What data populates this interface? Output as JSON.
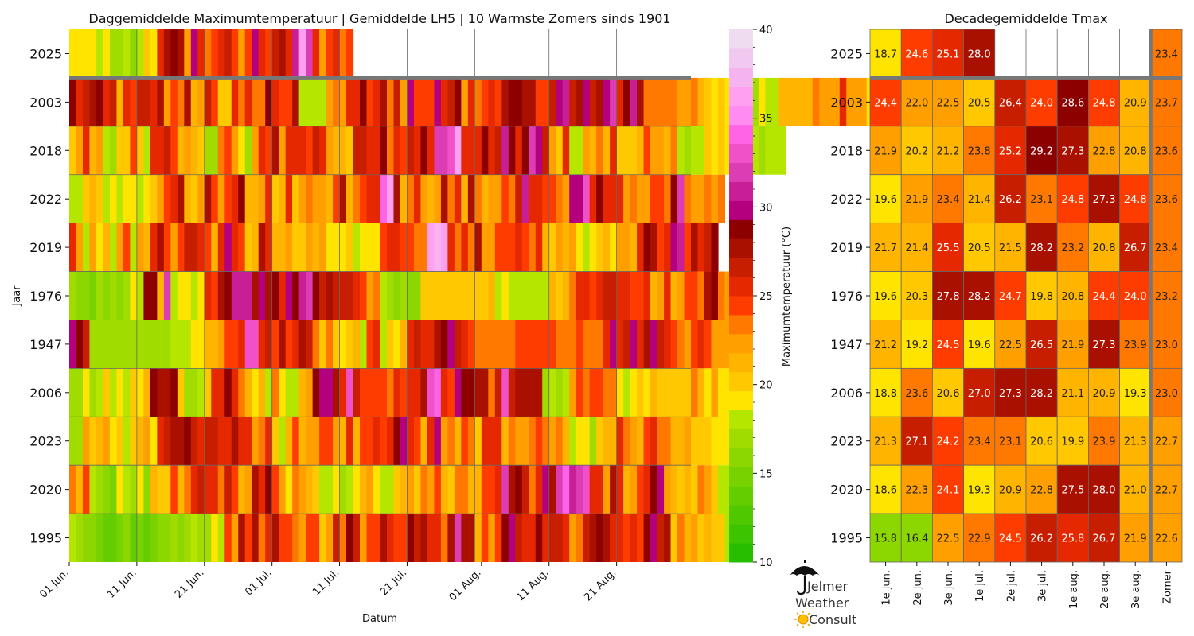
{
  "chart_data": [
    {
      "type": "heatmap",
      "title": "Daggemiddelde Maximumtemperatuur | Gemiddelde LH5 | 10 Warmste Zomers sinds 1901",
      "xlabel": "Datum",
      "ylabel": "Jaar",
      "years": [
        "2025",
        "2003",
        "2018",
        "2022",
        "2019",
        "1976",
        "1947",
        "2006",
        "2023",
        "2020",
        "1995"
      ],
      "x_tick_labels": [
        "01 Jun.",
        "11 Jun.",
        "21 Jun.",
        "01 Jul.",
        "11 Jul.",
        "21 Jul.",
        "01 Aug.",
        "11 Aug.",
        "21 Aug."
      ],
      "colorbar": {
        "label": "Maximumtemperatuur (°C)",
        "min": 10,
        "max": 40,
        "ticks": [
          10,
          15,
          20,
          25,
          30,
          35,
          40
        ]
      },
      "daily_values": [
        [
          19,
          19,
          19,
          19,
          18,
          19,
          17,
          17,
          18,
          16,
          18,
          20,
          19,
          26,
          28,
          29,
          28,
          22,
          30,
          26,
          23,
          24,
          26,
          27,
          24,
          22,
          24,
          30,
          26,
          24,
          27,
          28,
          25,
          31,
          36,
          32,
          26,
          22,
          24,
          25,
          23,
          24
        ],
        [
          29,
          26,
          27,
          28,
          29,
          25,
          27,
          21,
          26,
          24,
          27,
          27,
          25,
          28,
          22,
          24,
          23,
          28,
          21,
          22,
          27,
          24,
          20,
          20,
          25,
          23,
          25,
          23,
          23,
          29,
          25,
          24,
          24,
          28,
          18,
          18,
          18,
          18,
          22,
          23,
          22,
          25,
          25,
          29,
          24,
          26,
          28,
          23,
          27,
          22,
          30,
          24,
          24,
          24,
          30,
          26,
          27,
          29,
          22,
          26,
          23,
          24,
          26,
          24,
          28,
          29,
          29,
          28,
          28,
          24,
          24,
          27,
          30,
          31,
          27,
          28,
          30,
          27,
          28,
          30,
          32,
          25,
          29,
          31,
          28,
          23,
          23,
          23,
          23,
          23,
          22,
          22,
          23,
          21,
          20,
          19,
          20,
          19,
          23,
          18,
          19,
          17,
          19,
          18,
          18,
          21,
          21,
          21,
          21,
          21,
          23,
          22,
          22,
          22,
          25,
          22,
          22,
          22,
          19,
          17,
          17,
          15,
          17,
          17
        ],
        [
          20,
          22,
          25,
          21,
          22,
          18,
          17,
          20,
          20,
          24,
          20,
          18,
          25,
          26,
          27,
          24,
          21,
          22,
          21,
          20,
          17,
          17,
          23,
          24,
          22,
          19,
          17,
          22,
          25,
          24,
          28,
          22,
          26,
          26,
          25,
          24,
          27,
          25,
          22,
          21,
          21,
          20,
          27,
          27,
          26,
          25,
          29,
          23,
          25,
          24,
          27,
          26,
          29,
          26,
          32,
          32,
          33,
          36,
          25,
          26,
          25,
          29,
          25,
          27,
          31,
          29,
          26,
          29,
          32,
          30,
          27,
          22,
          20,
          26,
          18,
          18,
          22,
          21,
          23,
          21,
          25,
          20,
          20,
          20,
          21,
          24,
          22,
          22,
          21,
          23,
          18,
          17,
          18,
          18,
          20,
          19,
          20,
          19,
          18,
          18,
          18,
          18,
          17,
          18,
          18,
          18
        ],
        [
          18,
          18,
          20,
          21,
          20,
          18,
          19,
          18,
          19,
          19,
          18,
          19,
          20,
          22,
          24,
          25,
          28,
          21,
          20,
          22,
          28,
          24,
          22,
          24,
          25,
          29,
          21,
          21,
          22,
          26,
          20,
          21,
          25,
          20,
          22,
          23,
          22,
          22,
          21,
          24,
          28,
          21,
          23,
          24,
          26,
          26,
          34,
          36,
          28,
          21,
          23,
          25,
          22,
          21,
          22,
          28,
          23,
          26,
          21,
          28,
          23,
          21,
          22,
          22,
          24,
          23,
          27,
          31,
          25,
          25,
          24,
          24,
          23,
          22,
          30,
          30,
          33,
          26,
          29,
          26,
          25,
          25,
          22,
          23,
          22,
          22,
          24,
          24,
          23,
          29,
          32,
          23,
          22,
          22,
          23,
          22,
          23
        ],
        [
          25,
          22,
          18,
          22,
          19,
          21,
          18,
          22,
          24,
          18,
          22,
          21,
          26,
          28,
          24,
          22,
          24,
          27,
          27,
          25,
          24,
          21,
          25,
          30,
          26,
          24,
          20,
          21,
          28,
          25,
          21,
          21,
          22,
          20,
          20,
          22,
          21,
          22,
          19,
          19,
          19,
          20,
          18,
          19,
          19,
          19,
          24,
          25,
          25,
          24,
          24,
          23,
          23,
          36,
          37,
          36,
          25,
          23,
          25,
          23,
          28,
          22,
          22,
          24,
          24,
          24,
          25,
          24,
          23,
          25,
          21,
          20,
          22,
          21,
          22,
          19,
          18,
          19,
          20,
          21,
          19,
          22,
          22,
          21,
          25,
          29,
          28,
          24,
          26,
          30,
          31,
          24,
          28,
          25,
          27,
          29
        ],
        [
          17,
          16,
          16,
          15,
          17,
          16,
          17,
          16,
          17,
          19,
          18,
          29,
          29,
          21,
          32,
          18,
          19,
          19,
          18,
          19,
          25,
          24,
          28,
          29,
          31,
          31,
          31,
          28,
          30,
          28,
          29,
          25,
          30,
          29,
          31,
          32,
          29,
          27,
          28,
          27,
          27,
          27,
          25,
          24,
          22,
          23,
          18,
          17,
          16,
          17,
          16,
          16,
          20,
          20,
          20,
          20,
          20,
          20,
          20,
          20,
          20,
          20,
          21,
          18,
          19,
          18,
          18,
          18,
          18,
          18,
          18,
          21,
          20,
          21,
          23,
          26,
          25,
          24,
          26,
          27,
          27,
          26,
          25,
          24,
          24,
          25,
          21,
          22,
          26,
          21,
          22,
          24,
          24,
          23,
          28,
          29,
          23,
          22,
          26,
          20,
          20
        ],
        [
          30,
          29,
          27,
          17,
          17,
          17,
          17,
          17,
          17,
          17,
          17,
          17,
          17,
          17,
          17,
          18,
          18,
          18,
          19,
          19,
          21,
          21,
          22,
          24,
          24,
          26,
          33,
          33,
          26,
          27,
          24,
          28,
          24,
          26,
          28,
          27,
          23,
          20,
          23,
          20,
          19,
          20,
          21,
          18,
          24,
          25,
          18,
          20,
          19,
          21,
          25,
          27,
          25,
          26,
          28,
          29,
          30,
          27,
          26,
          24,
          23,
          23,
          23,
          23,
          23,
          23,
          24,
          24,
          24,
          24,
          24,
          24,
          23,
          23,
          23,
          24,
          23,
          23,
          23,
          26,
          30,
          25,
          27,
          30,
          25,
          28,
          30,
          27,
          25,
          24,
          23,
          22,
          24,
          25,
          24,
          22,
          22,
          22,
          22
        ],
        [
          17,
          17,
          19,
          17,
          18,
          20,
          18,
          19,
          18,
          20,
          19,
          21,
          29,
          28,
          28,
          29,
          20,
          17,
          17,
          18,
          20,
          25,
          25,
          29,
          26,
          23,
          21,
          19,
          21,
          18,
          23,
          19,
          18,
          18,
          21,
          22,
          29,
          30,
          30,
          28,
          26,
          33,
          27,
          24,
          24,
          24,
          24,
          23,
          25,
          24,
          26,
          26,
          28,
          33,
          34,
          26,
          24,
          30,
          29,
          29,
          28,
          28,
          23,
          27,
          33,
          27,
          28,
          28,
          28,
          28,
          17,
          18,
          17,
          18,
          22,
          24,
          23,
          24,
          24,
          23,
          23,
          19,
          18,
          19,
          20,
          19,
          21,
          20,
          20,
          20,
          20,
          20,
          23,
          21,
          19,
          22,
          19,
          19,
          18,
          17,
          18
        ],
        [
          17,
          17,
          22,
          20,
          21,
          22,
          19,
          20,
          18,
          20,
          21,
          22,
          19,
          25,
          27,
          28,
          28,
          29,
          27,
          26,
          27,
          27,
          25,
          26,
          28,
          26,
          26,
          22,
          23,
          25,
          20,
          18,
          21,
          24,
          21,
          22,
          22,
          24,
          24,
          22,
          21,
          25,
          21,
          24,
          24,
          25,
          24,
          26,
          29,
          30,
          25,
          24,
          21,
          26,
          30,
          22,
          23,
          21,
          24,
          23,
          20,
          26,
          25,
          25,
          21,
          23,
          22,
          22,
          23,
          24,
          23,
          22,
          23,
          21,
          18,
          19,
          19,
          17,
          20,
          21,
          21,
          25,
          23,
          22,
          21,
          24,
          25,
          23,
          23,
          21,
          21,
          22,
          20,
          20,
          20,
          19,
          19,
          19
        ],
        [
          23,
          21,
          24,
          18,
          17,
          16,
          15,
          19,
          18,
          17,
          19,
          16,
          21,
          20,
          20,
          24,
          21,
          23,
          26,
          27,
          26,
          26,
          23,
          27,
          24,
          21,
          22,
          28,
          26,
          29,
          24,
          22,
          19,
          23,
          22,
          21,
          20,
          18,
          18,
          19,
          17,
          18,
          19,
          21,
          22,
          19,
          18,
          18,
          20,
          21,
          22,
          20,
          23,
          22,
          24,
          21,
          20,
          23,
          23,
          21,
          21,
          24,
          24,
          26,
          32,
          28,
          29,
          27,
          23,
          26,
          30,
          28,
          32,
          34,
          31,
          32,
          33,
          25,
          25,
          22,
          28,
          26,
          21,
          22,
          24,
          26,
          29,
          30,
          22,
          21,
          20,
          21,
          20,
          23,
          22,
          20,
          18,
          18,
          18
        ],
        [
          18,
          17,
          16,
          16,
          15,
          14,
          14,
          15,
          16,
          14,
          15,
          14,
          15,
          16,
          16,
          17,
          16,
          17,
          18,
          17,
          17,
          19,
          18,
          24,
          22,
          28,
          24,
          28,
          23,
          26,
          28,
          24,
          24,
          23,
          22,
          24,
          24,
          20,
          22,
          27,
          23,
          29,
          27,
          22,
          24,
          24,
          28,
          25,
          24,
          24,
          29,
          27,
          28,
          26,
          25,
          23,
          28,
          32,
          28,
          28,
          21,
          24,
          22,
          24,
          29,
          30,
          27,
          26,
          26,
          29,
          25,
          27,
          27,
          25,
          22,
          23,
          27,
          28,
          29,
          28,
          25,
          26,
          24,
          25,
          24,
          29,
          30,
          27,
          28,
          20,
          23,
          21,
          22,
          20,
          21,
          20,
          20,
          18,
          18,
          19
        ]
      ]
    },
    {
      "type": "heatmap",
      "title": "Decadegemiddelde Tmax",
      "columns": [
        "1e jun.",
        "2e jun.",
        "3e jun.",
        "1e jul.",
        "2e jul.",
        "3e jul.",
        "1e aug.",
        "2e aug.",
        "3e aug.",
        "Zomer"
      ],
      "years": [
        "2025",
        "2003",
        "2018",
        "2022",
        "2019",
        "1976",
        "1947",
        "2006",
        "2023",
        "2020",
        "1995"
      ],
      "values": [
        [
          18.7,
          24.6,
          25.1,
          28.0,
          null,
          null,
          null,
          null,
          null,
          23.4
        ],
        [
          24.4,
          22.0,
          22.5,
          20.5,
          26.4,
          24.0,
          28.6,
          24.8,
          20.9,
          23.7
        ],
        [
          21.9,
          20.2,
          21.2,
          23.8,
          25.2,
          29.2,
          27.3,
          22.8,
          20.8,
          23.6
        ],
        [
          19.6,
          21.9,
          23.4,
          21.4,
          26.2,
          23.1,
          24.8,
          27.3,
          24.8,
          23.6
        ],
        [
          21.7,
          21.4,
          25.5,
          20.5,
          21.5,
          28.2,
          23.2,
          20.8,
          26.7,
          23.4
        ],
        [
          19.6,
          20.3,
          27.8,
          28.2,
          24.7,
          19.8,
          20.8,
          24.4,
          24.0,
          23.2
        ],
        [
          21.2,
          19.2,
          24.5,
          19.6,
          22.5,
          26.5,
          21.9,
          27.3,
          23.9,
          23.0
        ],
        [
          18.8,
          23.6,
          20.6,
          27.0,
          27.3,
          28.2,
          21.1,
          20.9,
          19.3,
          23.0
        ],
        [
          21.3,
          27.1,
          24.2,
          23.4,
          23.1,
          20.6,
          19.9,
          23.9,
          21.3,
          22.7
        ],
        [
          18.6,
          22.3,
          24.1,
          19.3,
          20.9,
          22.8,
          27.5,
          28.0,
          21.0,
          22.7
        ],
        [
          15.8,
          16.4,
          22.5,
          22.9,
          24.5,
          26.2,
          25.8,
          26.7,
          21.9,
          22.6
        ]
      ]
    }
  ],
  "logo": {
    "line1": "Jelmer",
    "line2": "Weather",
    "line3": "Consult"
  },
  "colors": {
    "scale": [
      "#28be00",
      "#3cc400",
      "#50c800",
      "#64cd00",
      "#78d200",
      "#8cd700",
      "#a0dc00",
      "#b4e600",
      "#ffe400",
      "#ffc800",
      "#ffb400",
      "#ffa000",
      "#ff7800",
      "#ff3c00",
      "#e62800",
      "#c81e00",
      "#aa1000",
      "#8c0000",
      "#b4007e",
      "#c81e96",
      "#dc3cb4",
      "#f050c8",
      "#ff64e6",
      "#ff8cf0",
      "#ffa0f0",
      "#f5b4f0",
      "#f0c8f0",
      "#f0dcf0"
    ],
    "grid": "#666666",
    "separator": "#777777"
  }
}
